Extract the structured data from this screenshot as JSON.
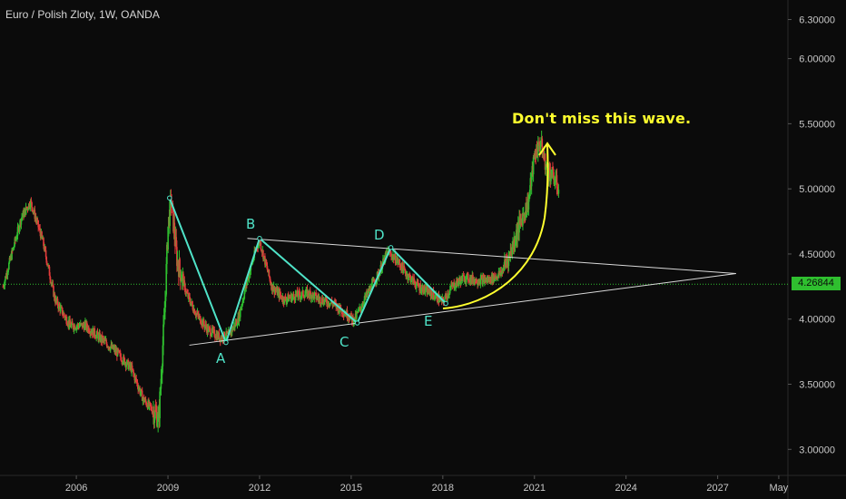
{
  "title": "Euro / Polish Zloty, 1W, OANDA",
  "last_price": "4.26844",
  "callout": "Don't miss this wave.",
  "wave_labels": [
    "A",
    "B",
    "C",
    "D",
    "E"
  ],
  "colors": {
    "background": "#0b0b0b",
    "up_candle": "#2fbf2f",
    "down_candle": "#e23b3b",
    "wave_line": "#4fe3c8",
    "trend_line": "#d9d9d9",
    "callout": "#ffff2e",
    "price_line": "#2fbf2f"
  },
  "chart_data": {
    "type": "line",
    "title": "Euro / Polish Zloty, 1W, OANDA",
    "xlabel": "",
    "ylabel": "",
    "ylim": [
      2.8,
      6.45
    ],
    "xlim": [
      2003.5,
      2029.3
    ],
    "x_ticks": [
      "2006",
      "2009",
      "2012",
      "2015",
      "2018",
      "2021",
      "2024",
      "2027",
      "May"
    ],
    "y_ticks": [
      "3.00000",
      "3.50000",
      "4.00000",
      "4.50000",
      "5.00000",
      "5.50000",
      "6.00000",
      "6.30000"
    ],
    "grid": false,
    "series": [
      {
        "values_x": [
          2003.6,
          2004.2,
          2004.5,
          2004.9,
          2005.3,
          2005.8,
          2006.3,
          2006.8,
          2007.3,
          2007.8,
          2008.2,
          2008.5,
          2008.7,
          2008.9,
          2009.0,
          2009.1,
          2009.3,
          2009.6,
          2009.9,
          2010.3,
          2010.7,
          2011.0,
          2011.3,
          2011.6,
          2011.9,
          2012.0,
          2012.4,
          2012.8,
          2013.2,
          2013.6,
          2014.0,
          2014.4,
          2014.8,
          2015.1,
          2015.5,
          2015.9,
          2016.2,
          2016.5,
          2016.8,
          2017.2,
          2017.6,
          2018.0,
          2018.3,
          2018.7,
          2019.1,
          2019.5,
          2019.9,
          2020.2,
          2020.5,
          2020.8,
          2021.0,
          2021.2,
          2021.4,
          2021.6,
          2021.8
        ],
        "values_y": [
          4.25,
          4.78,
          4.9,
          4.6,
          4.15,
          3.95,
          3.95,
          3.85,
          3.75,
          3.62,
          3.38,
          3.3,
          3.24,
          4.1,
          4.7,
          4.92,
          4.45,
          4.2,
          4.05,
          3.92,
          3.86,
          3.88,
          4.0,
          4.3,
          4.55,
          4.6,
          4.25,
          4.15,
          4.18,
          4.2,
          4.15,
          4.12,
          4.05,
          3.99,
          4.18,
          4.35,
          4.52,
          4.45,
          4.35,
          4.25,
          4.2,
          4.13,
          4.25,
          4.32,
          4.3,
          4.3,
          4.35,
          4.5,
          4.72,
          4.9,
          5.25,
          5.36,
          5.15,
          5.1,
          5.0
        ]
      }
    ],
    "wave_points": [
      {
        "label": "",
        "x": 2009.05,
        "y": 4.93
      },
      {
        "label": "A",
        "x": 2010.9,
        "y": 3.82
      },
      {
        "label": "B",
        "x": 2012.0,
        "y": 4.62
      },
      {
        "label": "C",
        "x": 2015.2,
        "y": 3.97
      },
      {
        "label": "D",
        "x": 2016.3,
        "y": 4.55
      },
      {
        "label": "E",
        "x": 2018.1,
        "y": 4.12
      }
    ],
    "trend_lines": [
      {
        "x": [
          2011.6,
          2027.6
        ],
        "y": [
          4.62,
          4.35
        ]
      },
      {
        "x": [
          2009.7,
          2027.6
        ],
        "y": [
          3.8,
          4.35
        ]
      }
    ],
    "last_value": 4.26844
  }
}
